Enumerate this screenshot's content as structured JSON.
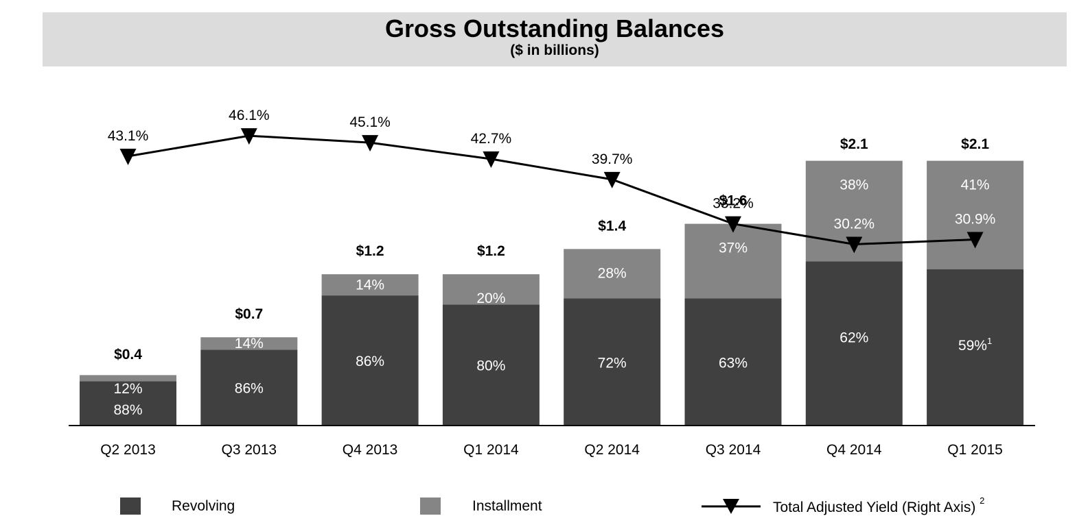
{
  "header": {
    "title": "Gross Outstanding Balances",
    "subtitle": "($ in billions)"
  },
  "colors": {
    "revolving": "#404040",
    "installment": "#858585",
    "yield_line": "#000000",
    "header_bg": "#dcdcdc"
  },
  "chart_data": {
    "type": "bar",
    "stacked": true,
    "title": "Gross Outstanding Balances",
    "subtitle": "($ in billions)",
    "categories": [
      "Q2 2013",
      "Q3 2013",
      "Q4 2013",
      "Q1 2014",
      "Q2 2014",
      "Q3 2014",
      "Q4 2014",
      "Q1 2015"
    ],
    "totals": [
      0.4,
      0.7,
      1.2,
      1.2,
      1.4,
      1.6,
      2.1,
      2.1
    ],
    "total_labels": [
      "$0.4",
      "$0.7",
      "$1.2",
      "$1.2",
      "$1.4",
      "$1.6",
      "$2.1",
      "$2.1"
    ],
    "series": [
      {
        "name": "Revolving",
        "share_pct": [
          88,
          86,
          86,
          80,
          72,
          63,
          62,
          59
        ],
        "labels": [
          "88%",
          "86%",
          "86%",
          "80%",
          "72%",
          "63%",
          "62%",
          "59%"
        ],
        "footnotes": [
          "",
          "",
          "",
          "",
          "",
          "",
          "",
          "1"
        ]
      },
      {
        "name": "Installment",
        "share_pct": [
          12,
          14,
          14,
          20,
          28,
          37,
          38,
          41
        ],
        "labels": [
          "12%",
          "14%",
          "14%",
          "20%",
          "28%",
          "37%",
          "38%",
          "41%"
        ]
      }
    ],
    "line_series": {
      "name": "Total Adjusted Yield (Right Axis)",
      "footnote": "2",
      "axis": "right",
      "marker": "down-triangle",
      "values": [
        43.1,
        46.1,
        45.1,
        42.7,
        39.7,
        33.2,
        30.2,
        30.9
      ],
      "labels": [
        "43.1%",
        "46.1%",
        "45.1%",
        "42.7%",
        "39.7%",
        "33.2%",
        "30.2%",
        "30.9%"
      ]
    },
    "legend_position": "bottom",
    "grid": false
  },
  "legend": {
    "revolving": "Revolving",
    "installment": "Installment",
    "yield": "Total Adjusted Yield (Right Axis)",
    "yield_footnote": "2"
  }
}
